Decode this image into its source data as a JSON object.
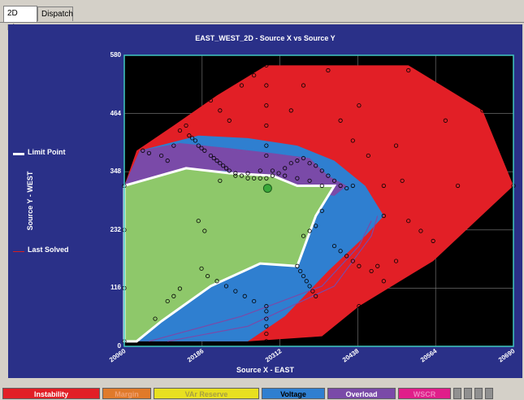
{
  "tabs": [
    {
      "label": "2D Plot",
      "active": true
    },
    {
      "label": "Dispatch",
      "active": false
    }
  ],
  "plot": {
    "title": "EAST_WEST_2D  - Source X vs Source Y",
    "xlabel": "Source X - EAST",
    "ylabel": "Source Y - WEST"
  },
  "legend": [
    {
      "label": "Limit Point",
      "color": "#ffffff"
    },
    {
      "label": "Last Solved",
      "color": "#d42020"
    }
  ],
  "categories": [
    {
      "label": "Instability",
      "color": "#e21f26",
      "text_color": "#ffffff"
    },
    {
      "label": "Margin",
      "color": "#e07a2a",
      "text_color": "#f0a070"
    },
    {
      "label": "VAr Reserve",
      "color": "#e8e020",
      "text_color": "#a8a040"
    },
    {
      "label": "Voltage",
      "color": "#2f7fd0",
      "text_color": "#000000"
    },
    {
      "label": "Overload",
      "color": "#7a4aa8",
      "text_color": "#ffffff"
    },
    {
      "label": "WSCR",
      "color": "#e01e8a",
      "text_color": "#f080c0"
    }
  ],
  "chart_data": {
    "type": "scatter",
    "x_ticks": [
      "20060",
      "20186",
      "20312",
      "20438",
      "20564",
      "20690"
    ],
    "y_ticks": [
      "0",
      "116",
      "232",
      "348",
      "464",
      "580"
    ],
    "xlim": [
      20060,
      20690
    ],
    "ylim": [
      0,
      580
    ],
    "grid": true,
    "regions": [
      {
        "name": "Instability",
        "color": "#e21f26",
        "points": [
          [
            20080,
            390
          ],
          [
            20140,
            440
          ],
          [
            20210,
            500
          ],
          [
            20290,
            560
          ],
          [
            20520,
            560
          ],
          [
            20640,
            470
          ],
          [
            20690,
            320
          ],
          [
            20560,
            170
          ],
          [
            20440,
            80
          ],
          [
            20380,
            20
          ],
          [
            20260,
            10
          ],
          [
            20060,
            10
          ],
          [
            20060,
            320
          ]
        ]
      },
      {
        "name": "Voltage",
        "color": "#2f7fd0",
        "points": [
          [
            20085,
            390
          ],
          [
            20180,
            420
          ],
          [
            20260,
            415
          ],
          [
            20340,
            400
          ],
          [
            20400,
            370
          ],
          [
            20450,
            320
          ],
          [
            20480,
            260
          ],
          [
            20450,
            220
          ],
          [
            20390,
            150
          ],
          [
            20320,
            60
          ],
          [
            20260,
            10
          ],
          [
            20060,
            10
          ],
          [
            20060,
            320
          ]
        ]
      },
      {
        "name": "Overload",
        "color": "#7a4aa8",
        "points": [
          [
            20085,
            390
          ],
          [
            20150,
            405
          ],
          [
            20230,
            395
          ],
          [
            20300,
            385
          ],
          [
            20360,
            375
          ],
          [
            20390,
            340
          ],
          [
            20420,
            320
          ],
          [
            20400,
            300
          ],
          [
            20350,
            310
          ],
          [
            20300,
            335
          ],
          [
            20220,
            350
          ],
          [
            20160,
            345
          ],
          [
            20100,
            330
          ],
          [
            20060,
            320
          ]
        ]
      },
      {
        "name": "Stable",
        "color": "#8ec86a",
        "points": [
          [
            20060,
            320
          ],
          [
            20160,
            355
          ],
          [
            20230,
            345
          ],
          [
            20300,
            340
          ],
          [
            20340,
            320
          ],
          [
            20400,
            320
          ],
          [
            20370,
            260
          ],
          [
            20340,
            160
          ],
          [
            20280,
            165
          ],
          [
            20200,
            120
          ],
          [
            20120,
            50
          ],
          [
            20080,
            10
          ],
          [
            20060,
            10
          ]
        ]
      }
    ],
    "limit_point_path": [
      [
        20060,
        320
      ],
      [
        20160,
        355
      ],
      [
        20230,
        345
      ],
      [
        20300,
        340
      ],
      [
        20340,
        320
      ],
      [
        20400,
        320
      ],
      [
        20370,
        260
      ],
      [
        20340,
        160
      ],
      [
        20280,
        165
      ],
      [
        20200,
        120
      ],
      [
        20120,
        50
      ],
      [
        20080,
        10
      ],
      [
        20060,
        10
      ],
      [
        20060,
        320
      ]
    ],
    "last_solved": [
      20292,
      315
    ],
    "points": [
      [
        20060,
        320
      ],
      [
        20060,
        232
      ],
      [
        20060,
        116
      ],
      [
        20060,
        10
      ],
      [
        20090,
        390
      ],
      [
        20100,
        385
      ],
      [
        20120,
        380
      ],
      [
        20130,
        370
      ],
      [
        20140,
        400
      ],
      [
        20150,
        430
      ],
      [
        20160,
        440
      ],
      [
        20165,
        420
      ],
      [
        20170,
        415
      ],
      [
        20175,
        410
      ],
      [
        20180,
        400
      ],
      [
        20185,
        395
      ],
      [
        20190,
        390
      ],
      [
        20200,
        380
      ],
      [
        20205,
        375
      ],
      [
        20210,
        370
      ],
      [
        20215,
        365
      ],
      [
        20220,
        360
      ],
      [
        20225,
        355
      ],
      [
        20230,
        350
      ],
      [
        20240,
        345
      ],
      [
        20250,
        340
      ],
      [
        20260,
        335
      ],
      [
        20270,
        335
      ],
      [
        20280,
        335
      ],
      [
        20290,
        335
      ],
      [
        20300,
        340
      ],
      [
        20310,
        345
      ],
      [
        20320,
        355
      ],
      [
        20330,
        365
      ],
      [
        20340,
        370
      ],
      [
        20350,
        375
      ],
      [
        20360,
        365
      ],
      [
        20370,
        360
      ],
      [
        20380,
        350
      ],
      [
        20390,
        340
      ],
      [
        20400,
        330
      ],
      [
        20410,
        320
      ],
      [
        20420,
        315
      ],
      [
        20430,
        320
      ],
      [
        20440,
        480
      ],
      [
        20455,
        380
      ],
      [
        20480,
        320
      ],
      [
        20480,
        260
      ],
      [
        20500,
        400
      ],
      [
        20510,
        330
      ],
      [
        20520,
        250
      ],
      [
        20540,
        230
      ],
      [
        20560,
        210
      ],
      [
        20580,
        450
      ],
      [
        20600,
        320
      ],
      [
        20640,
        470
      ],
      [
        20690,
        320
      ],
      [
        20530,
        110
      ],
      [
        20480,
        130
      ],
      [
        20440,
        80
      ],
      [
        20420,
        40
      ],
      [
        20400,
        20
      ],
      [
        20400,
        200
      ],
      [
        20410,
        190
      ],
      [
        20420,
        180
      ],
      [
        20430,
        170
      ],
      [
        20440,
        160
      ],
      [
        20380,
        270
      ],
      [
        20370,
        240
      ],
      [
        20360,
        230
      ],
      [
        20350,
        220
      ],
      [
        20340,
        160
      ],
      [
        20345,
        150
      ],
      [
        20350,
        140
      ],
      [
        20355,
        130
      ],
      [
        20360,
        120
      ],
      [
        20365,
        110
      ],
      [
        20370,
        100
      ],
      [
        20290,
        80
      ],
      [
        20290,
        70
      ],
      [
        20290,
        55
      ],
      [
        20290,
        40
      ],
      [
        20290,
        25
      ],
      [
        20290,
        10
      ],
      [
        20290,
        560
      ],
      [
        20290,
        520
      ],
      [
        20290,
        480
      ],
      [
        20290,
        440
      ],
      [
        20290,
        400
      ],
      [
        20290,
        380
      ],
      [
        20190,
        230
      ],
      [
        20180,
        250
      ],
      [
        20185,
        155
      ],
      [
        20195,
        140
      ],
      [
        20210,
        130
      ],
      [
        20225,
        120
      ],
      [
        20240,
        110
      ],
      [
        20255,
        100
      ],
      [
        20270,
        90
      ],
      [
        20150,
        115
      ],
      [
        20140,
        100
      ],
      [
        20130,
        90
      ],
      [
        20110,
        55
      ],
      [
        20215,
        330
      ],
      [
        20240,
        340
      ],
      [
        20260,
        345
      ],
      [
        20280,
        350
      ],
      [
        20300,
        350
      ],
      [
        20320,
        340
      ],
      [
        20340,
        335
      ],
      [
        20360,
        330
      ],
      [
        20380,
        320
      ],
      [
        20200,
        490
      ],
      [
        20215,
        470
      ],
      [
        20230,
        450
      ],
      [
        20250,
        520
      ],
      [
        20270,
        540
      ],
      [
        20330,
        470
      ],
      [
        20350,
        520
      ],
      [
        20390,
        550
      ],
      [
        20520,
        550
      ],
      [
        20430,
        410
      ],
      [
        20410,
        450
      ],
      [
        20500,
        170
      ],
      [
        20470,
        160
      ],
      [
        20460,
        150
      ]
    ]
  }
}
